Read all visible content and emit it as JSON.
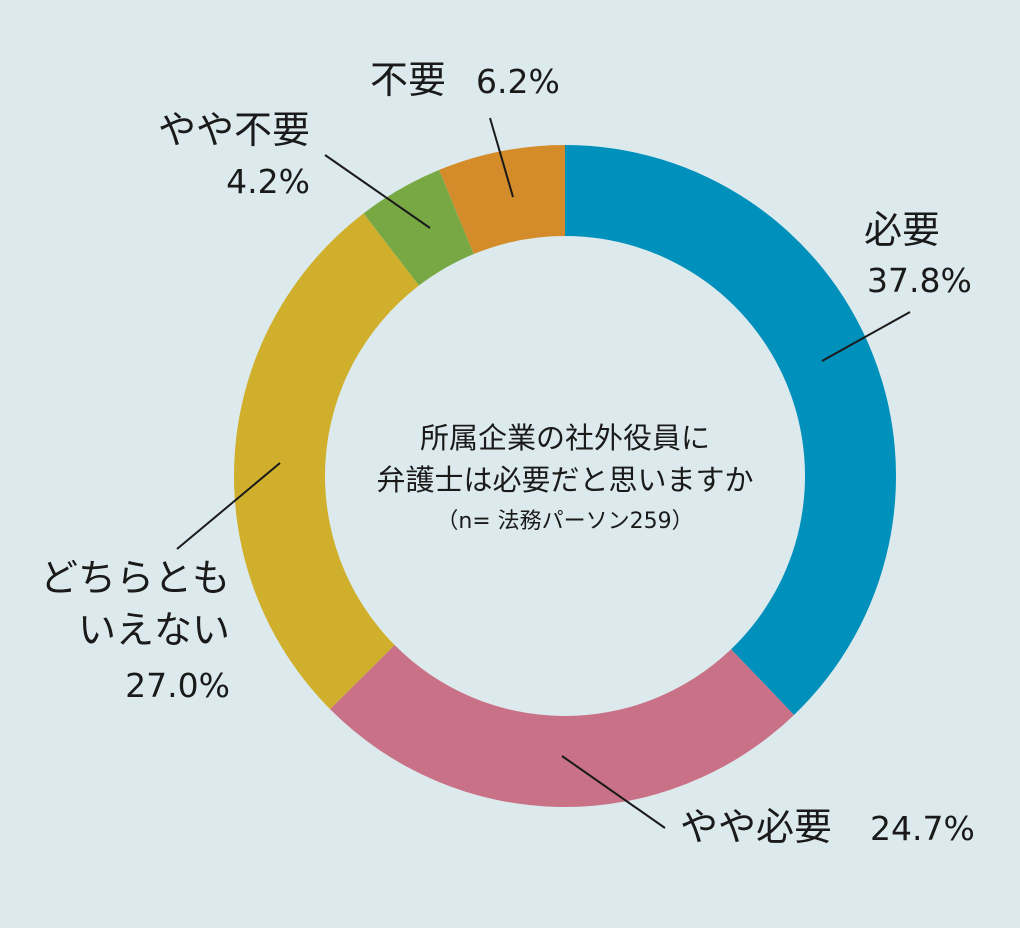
{
  "chart_data": {
    "type": "pie",
    "variant": "donut",
    "title_lines": [
      "所属企業の社外役員に",
      "弁護士は必要だと思いますか"
    ],
    "subtitle": "（n= 法務パーソン259）",
    "categories": [
      "必要",
      "やや必要",
      "どちらともいえない",
      "やや不要",
      "不要"
    ],
    "label_lines": [
      [
        "必要"
      ],
      [
        "やや必要"
      ],
      [
        "どちらとも",
        "いえない"
      ],
      [
        "やや不要"
      ],
      [
        "不要"
      ]
    ],
    "value_labels": [
      "37.8%",
      "24.7%",
      "27.0%",
      "4.2%",
      "6.2%"
    ],
    "values": [
      37.8,
      24.7,
      27.0,
      4.2,
      6.2
    ],
    "colors": [
      "#0090bc",
      "#c97287",
      "#d0af2c",
      "#78a843",
      "#d48c2b"
    ],
    "start": "12 o'clock",
    "direction": "clockwise",
    "legend": "none (labels placed beside slices)",
    "background": "#ddeaed"
  }
}
